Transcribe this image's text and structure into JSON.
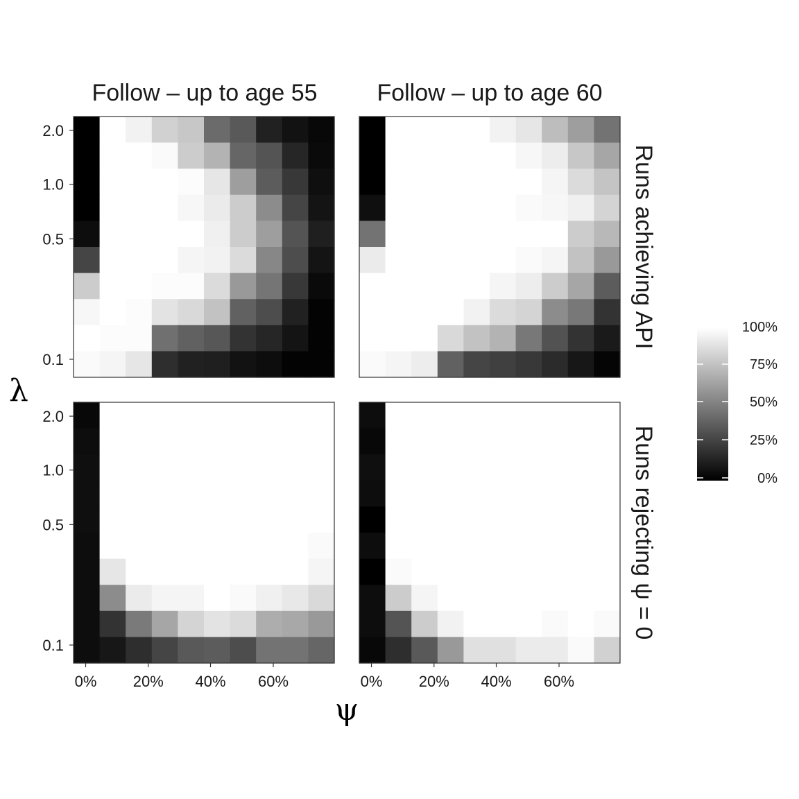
{
  "chart_data": {
    "type": "heatmap",
    "xlabel": "ψ",
    "ylabel": "λ",
    "x_tick_labels": [
      "0%",
      "20%",
      "40%",
      "60%"
    ],
    "y_tick_labels": [
      "2.0",
      "1.0",
      "0.5",
      "0.1"
    ],
    "y_scale": "log",
    "grid": false,
    "legend": {
      "position": "right",
      "color_scale": [
        "#000000",
        "#ffffff"
      ],
      "ticks": [
        "100%",
        "75%",
        "50%",
        "25%",
        "0%"
      ]
    },
    "column_facets": [
      "Follow – up to age 55",
      "Follow – up to age 60"
    ],
    "row_facets": [
      "Runs achieving API",
      "Runs rejecting ψ = 0"
    ],
    "panels": [
      {
        "row_facet": "Runs achieving API",
        "column_facet": "Follow – up to age 55",
        "rows_top_to_bottom": [
          [
            0,
            100,
            95,
            82,
            78,
            42,
            35,
            13,
            7,
            3
          ],
          [
            0,
            100,
            100,
            98,
            80,
            70,
            40,
            33,
            15,
            4
          ],
          [
            0,
            100,
            100,
            100,
            99,
            90,
            62,
            36,
            22,
            6
          ],
          [
            0,
            100,
            100,
            100,
            97,
            92,
            80,
            55,
            27,
            8
          ],
          [
            5,
            100,
            100,
            100,
            100,
            94,
            80,
            62,
            33,
            12
          ],
          [
            27,
            100,
            100,
            100,
            96,
            95,
            86,
            53,
            30,
            8
          ],
          [
            80,
            100,
            100,
            99,
            99,
            86,
            60,
            46,
            22,
            4
          ],
          [
            97,
            100,
            99,
            89,
            85,
            76,
            38,
            30,
            13,
            1
          ],
          [
            100,
            99,
            99,
            44,
            38,
            34,
            20,
            15,
            8,
            1
          ],
          [
            98,
            96,
            90,
            18,
            13,
            12,
            7,
            5,
            1,
            1
          ]
        ]
      },
      {
        "row_facet": "Runs achieving API",
        "column_facet": "Follow – up to age 60",
        "rows_top_to_bottom": [
          [
            0,
            100,
            100,
            100,
            100,
            95,
            90,
            74,
            62,
            45
          ],
          [
            0,
            100,
            100,
            100,
            100,
            100,
            97,
            93,
            78,
            65
          ],
          [
            0,
            100,
            100,
            100,
            100,
            100,
            100,
            96,
            86,
            77
          ],
          [
            6,
            100,
            100,
            100,
            100,
            100,
            98,
            97,
            94,
            83
          ],
          [
            45,
            100,
            100,
            100,
            100,
            100,
            100,
            100,
            80,
            72
          ],
          [
            92,
            100,
            100,
            100,
            100,
            100,
            98,
            96,
            76,
            60
          ],
          [
            100,
            100,
            100,
            100,
            100,
            96,
            93,
            80,
            65,
            36
          ],
          [
            100,
            100,
            100,
            100,
            95,
            86,
            83,
            55,
            47,
            20
          ],
          [
            100,
            100,
            100,
            85,
            76,
            70,
            47,
            32,
            20,
            10
          ],
          [
            98,
            96,
            93,
            38,
            27,
            25,
            22,
            17,
            9,
            2
          ]
        ]
      },
      {
        "row_facet": "Runs rejecting ψ = 0",
        "column_facet": "Follow – up to age 55",
        "rows_top_to_bottom": [
          [
            3,
            100,
            100,
            100,
            100,
            100,
            100,
            100,
            100,
            100
          ],
          [
            5,
            100,
            100,
            100,
            100,
            100,
            100,
            100,
            100,
            100
          ],
          [
            6,
            100,
            100,
            100,
            100,
            100,
            100,
            100,
            100,
            100
          ],
          [
            6,
            100,
            100,
            100,
            100,
            100,
            100,
            100,
            100,
            100
          ],
          [
            6,
            100,
            100,
            100,
            100,
            100,
            100,
            100,
            100,
            100
          ],
          [
            5,
            100,
            100,
            100,
            100,
            100,
            100,
            100,
            100,
            98
          ],
          [
            5,
            90,
            100,
            100,
            100,
            100,
            100,
            100,
            100,
            96
          ],
          [
            5,
            55,
            92,
            96,
            96,
            100,
            98,
            94,
            91,
            85
          ],
          [
            5,
            20,
            48,
            65,
            83,
            89,
            86,
            68,
            66,
            60
          ],
          [
            5,
            9,
            18,
            27,
            35,
            36,
            30,
            45,
            45,
            40
          ]
        ]
      },
      {
        "row_facet": "Runs rejecting ψ = 0",
        "column_facet": "Follow – up to age 60",
        "rows_top_to_bottom": [
          [
            5,
            100,
            100,
            100,
            100,
            100,
            100,
            100,
            100,
            100
          ],
          [
            3,
            100,
            100,
            100,
            100,
            100,
            100,
            100,
            100,
            100
          ],
          [
            6,
            100,
            100,
            100,
            100,
            100,
            100,
            100,
            100,
            100
          ],
          [
            5,
            100,
            100,
            100,
            100,
            100,
            100,
            100,
            100,
            100
          ],
          [
            0,
            100,
            100,
            100,
            100,
            100,
            100,
            100,
            100,
            100
          ],
          [
            5,
            100,
            100,
            100,
            100,
            100,
            100,
            100,
            100,
            100
          ],
          [
            0,
            98,
            100,
            100,
            100,
            100,
            100,
            100,
            100,
            100
          ],
          [
            5,
            80,
            96,
            100,
            100,
            100,
            100,
            100,
            100,
            100
          ],
          [
            5,
            33,
            80,
            95,
            100,
            100,
            100,
            98,
            100,
            98
          ],
          [
            3,
            18,
            35,
            60,
            88,
            88,
            92,
            92,
            98,
            82
          ]
        ]
      }
    ]
  }
}
